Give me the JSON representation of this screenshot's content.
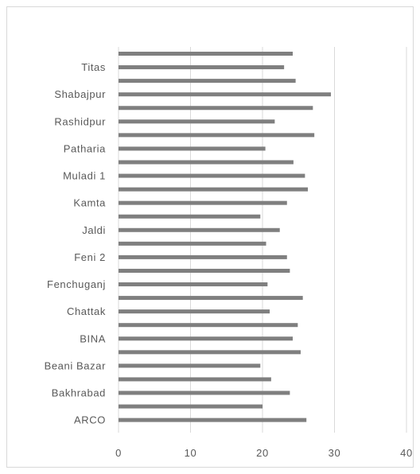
{
  "chart_data": {
    "type": "bar",
    "orientation": "horizontal",
    "grid": true,
    "xlim": [
      0,
      40
    ],
    "x_ticks": [
      "0",
      "10",
      "20",
      "30",
      "40"
    ],
    "labels_shown": [
      "Titas",
      "Shabajpur",
      "Rashidpur",
      "Patharia",
      "Muladi 1",
      "Kamta",
      "Jaldi",
      "Feni 2",
      "Fenchuganj",
      "Chattak",
      "BINA",
      "Beani Bazar",
      "Bakhrabad",
      "ARCO"
    ],
    "values_top_to_bottom": [
      24.2,
      23.0,
      24.6,
      29.5,
      27.0,
      21.7,
      27.2,
      20.4,
      24.3,
      25.9,
      26.3,
      23.4,
      19.7,
      22.4,
      20.5,
      23.4,
      23.8,
      20.7,
      25.6,
      21.0,
      24.9,
      24.2,
      25.3,
      19.7,
      21.2,
      23.8,
      20.0,
      26.1
    ]
  }
}
